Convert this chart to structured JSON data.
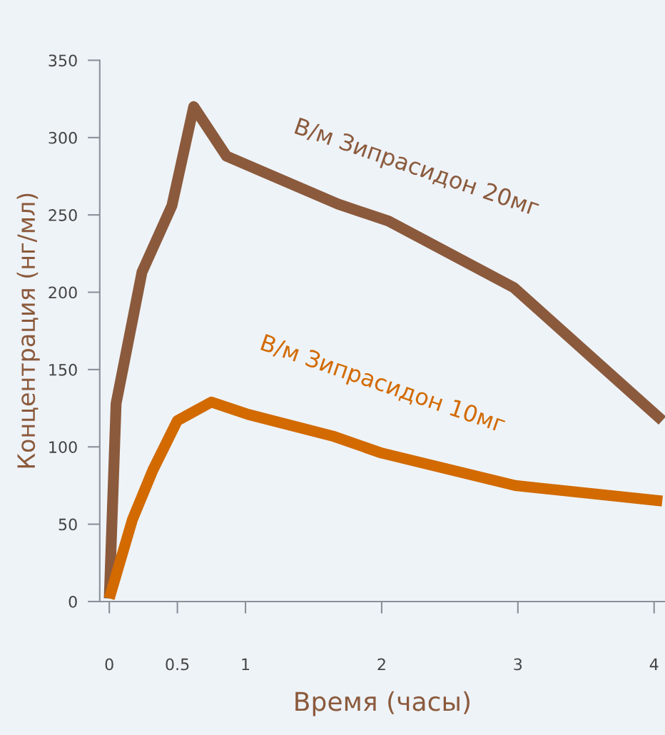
{
  "chart_data": {
    "type": "line",
    "xlabel": "Время (часы)",
    "ylabel": "Концентрация (нг/мл)",
    "xlim": [
      -0.07,
      4.08
    ],
    "ylim": [
      0,
      350
    ],
    "xticks": [
      0,
      0.5,
      1,
      2,
      3,
      4
    ],
    "yticks": [
      0,
      50,
      100,
      150,
      200,
      250,
      300,
      350
    ],
    "grid": false,
    "legend": false,
    "marker": "none",
    "line_style": "solid",
    "series": [
      {
        "name": "В/м Зипрасидон 20мг",
        "color": "#8b5a3c",
        "x": [
          0,
          0.05,
          0.24,
          0.46,
          0.62,
          0.86,
          1.68,
          2.05,
          2.97,
          4.06
        ],
        "values": [
          2,
          128,
          213,
          256,
          320,
          288,
          257,
          246,
          203,
          117
        ]
      },
      {
        "name": "В/м Зипрасидон 10мг",
        "color": "#d26a00",
        "x": [
          0,
          0.17,
          0.32,
          0.5,
          0.75,
          1.02,
          1.64,
          2.0,
          2.98,
          4.06
        ],
        "values": [
          2,
          53,
          85,
          117,
          129,
          121,
          107,
          96,
          75,
          65
        ]
      }
    ]
  }
}
